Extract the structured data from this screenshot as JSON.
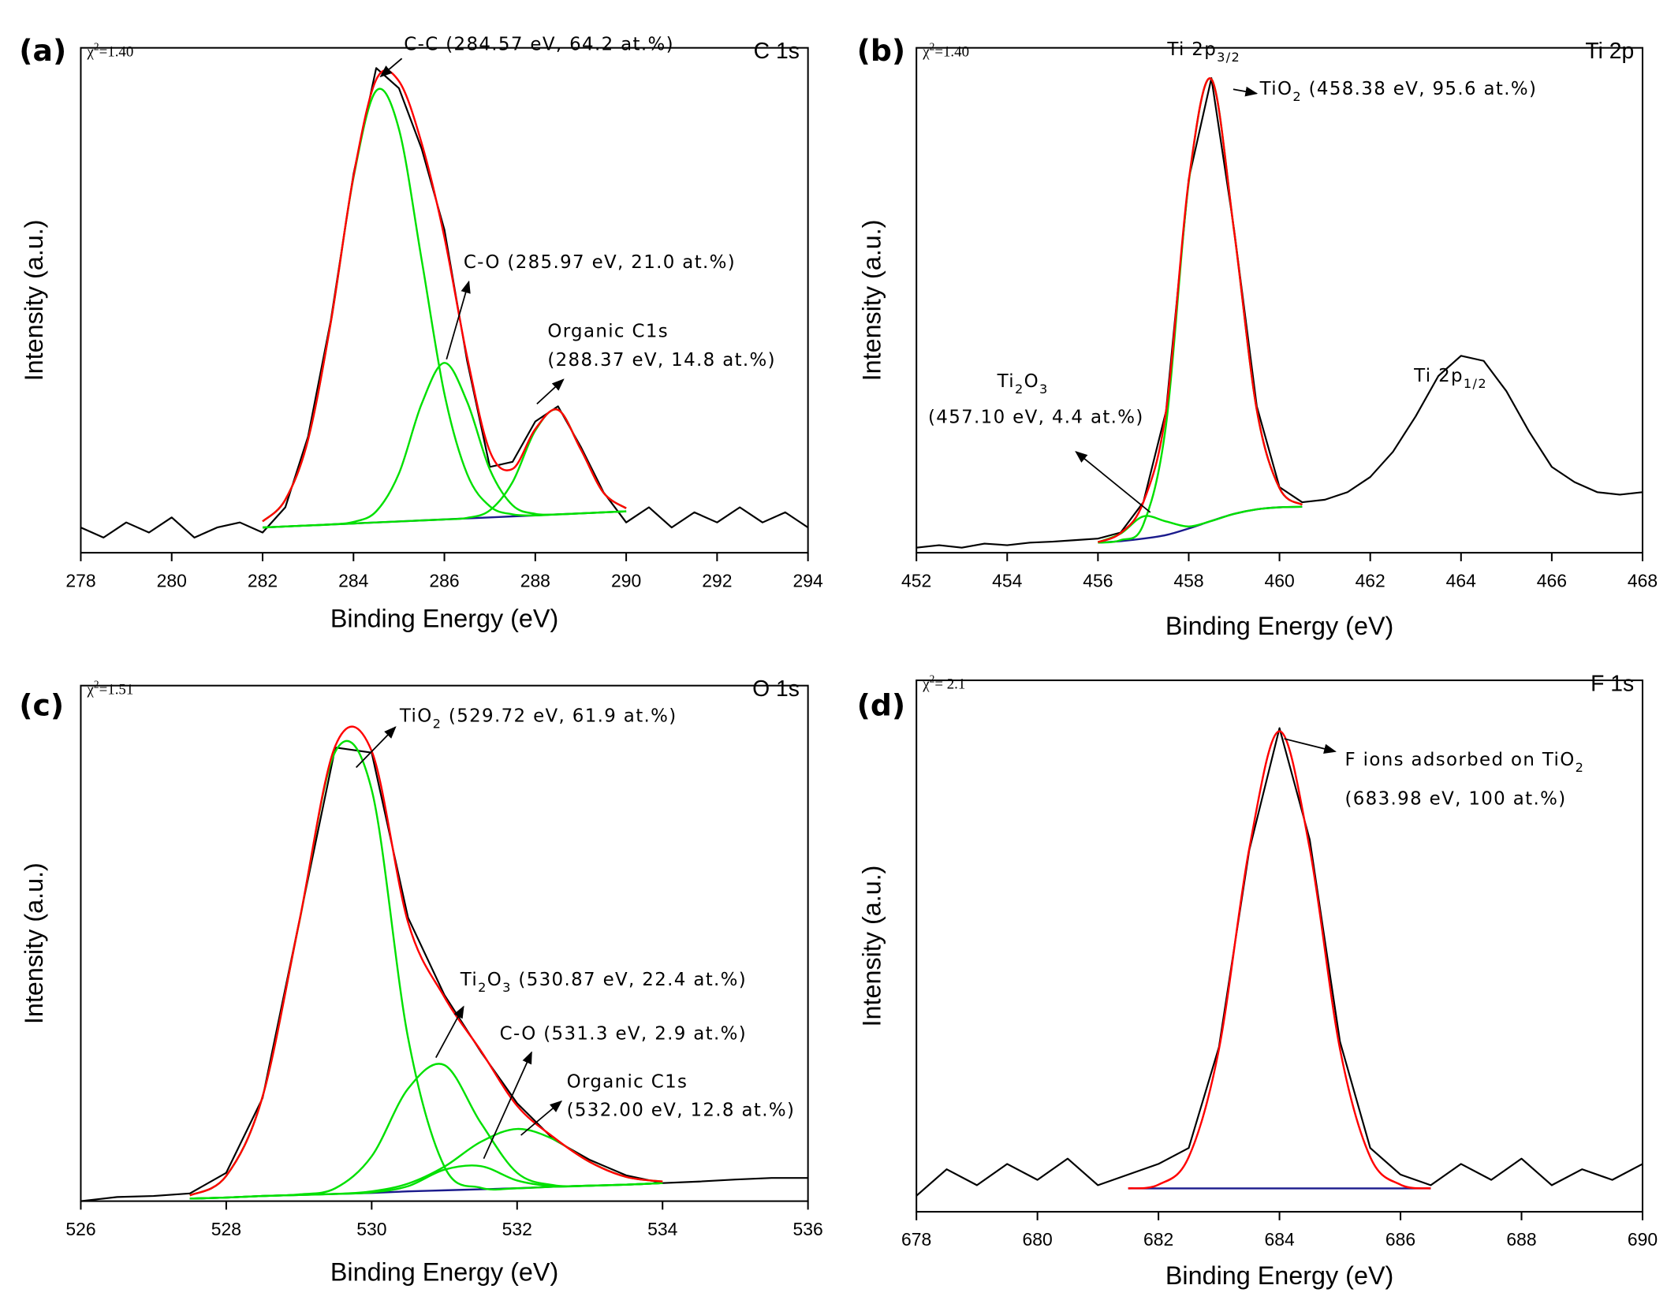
{
  "chart_data": [
    {
      "type": "line",
      "label": "(a)",
      "region": "C 1s",
      "chi": [
        "χ",
        "2",
        "=1.40"
      ],
      "xlabel": "Binding Energy (eV)",
      "ylabel": "Intensity (a.u.)",
      "xlim": [
        278,
        294
      ],
      "xticks": [
        278,
        280,
        282,
        284,
        286,
        288,
        290,
        292,
        294
      ],
      "ylim": [
        0,
        100
      ],
      "series": [
        {
          "color": "#000000",
          "x": [
            278,
            278.5,
            279,
            279.5,
            280,
            280.5,
            281,
            281.5,
            282,
            282.5,
            283,
            283.5,
            284,
            284.5,
            285,
            285.5,
            286,
            286.5,
            287,
            287.5,
            288,
            288.5,
            289,
            289.5,
            290,
            290.5,
            291,
            291.5,
            292,
            292.5,
            293,
            293.5,
            294
          ],
          "values": [
            5,
            3,
            6,
            4,
            7,
            3,
            5,
            6,
            4,
            9,
            23,
            46,
            75,
            96,
            92,
            80,
            64,
            38,
            17,
            18,
            26,
            29,
            21,
            12,
            6,
            9,
            5,
            8,
            6,
            9,
            6,
            8,
            5
          ]
        },
        {
          "color": "#1a1a8c",
          "x": [
            282,
            282.5,
            283,
            283.5,
            284,
            284.5,
            285,
            285.5,
            286,
            286.5,
            287,
            287.5,
            288,
            288.5,
            289,
            289.5,
            290
          ],
          "values": [
            5.0,
            5.2,
            5.4,
            5.6,
            5.8,
            6.0,
            6.2,
            6.4,
            6.6,
            6.8,
            7.0,
            7.2,
            7.4,
            7.6,
            7.8,
            8.0,
            8.2
          ]
        },
        {
          "color": "#00e000",
          "x": [
            282,
            282.5,
            283,
            283.5,
            284,
            284.5,
            285,
            285.5,
            286,
            286.5,
            287,
            287.5,
            288,
            288.5,
            289,
            289.5,
            290
          ],
          "values": [
            6.2,
            10.5,
            22.4,
            45.6,
            74.3,
            91.5,
            83.9,
            58.0,
            31.5,
            15.6,
            9.2,
            7.6,
            7.4,
            7.6,
            7.8,
            8.0,
            8.2
          ]
        },
        {
          "color": "#00e000",
          "x": [
            282,
            282.5,
            283,
            283.5,
            284,
            284.5,
            285,
            285.5,
            286,
            286.5,
            287,
            287.5,
            288,
            288.5,
            289,
            289.5,
            290
          ],
          "values": [
            5.0,
            5.2,
            5.4,
            5.6,
            6.1,
            8.2,
            15.7,
            29.5,
            37.6,
            29.9,
            16.5,
            9.4,
            7.7,
            7.6,
            7.8,
            8.0,
            8.2
          ]
        },
        {
          "color": "#00e000",
          "x": [
            282,
            282.5,
            283,
            283.5,
            284,
            284.5,
            285,
            285.5,
            286,
            286.5,
            287,
            287.5,
            288,
            288.5,
            289,
            289.5,
            290
          ],
          "values": [
            5.0,
            5.2,
            5.4,
            5.6,
            5.8,
            6.0,
            6.2,
            6.4,
            6.6,
            6.9,
            8.4,
            14.0,
            24.2,
            28.3,
            20.5,
            11.9,
            8.8
          ]
        },
        {
          "color": "#ff0000",
          "x": [
            282,
            282.5,
            283,
            283.5,
            284,
            284.5,
            285,
            285.5,
            286,
            286.5,
            287,
            287.5,
            288,
            288.5,
            289,
            289.5,
            290
          ],
          "values": [
            6.2,
            10.5,
            22.4,
            45.6,
            74.6,
            93.7,
            93.4,
            81.1,
            62.5,
            38.8,
            20.1,
            16.6,
            24.5,
            28.3,
            20.5,
            11.9,
            8.8
          ]
        }
      ],
      "annotations": [
        {
          "lines": [
            [
              "C-C (284.57 eV, 64.2 at.%)"
            ]
          ]
        },
        {
          "lines": [
            [
              "C-O (285.97 eV, 21.0 at.%)"
            ]
          ]
        },
        {
          "lines": [
            [
              "Organic C1s"
            ],
            [
              "(288.37 eV, 14.8 at.%)"
            ]
          ]
        }
      ]
    },
    {
      "type": "line",
      "label": "(b)",
      "region": "Ti 2p",
      "chi": [
        "χ",
        "2",
        "=1.40"
      ],
      "xlabel": "Binding Energy (eV)",
      "ylabel": "Intensity (a.u.)",
      "xlim": [
        452,
        468
      ],
      "xticks": [
        452,
        454,
        456,
        458,
        460,
        462,
        464,
        466,
        468
      ],
      "ylim": [
        0,
        100
      ],
      "series": [
        {
          "color": "#000000",
          "x": [
            452,
            452.5,
            453,
            453.5,
            454,
            454.5,
            455,
            455.5,
            456,
            456.5,
            457,
            457.5,
            458,
            458.5,
            459,
            459.5,
            460,
            460.5,
            461,
            461.5,
            462,
            462.5,
            463,
            463.5,
            464,
            464.5,
            465,
            465.5,
            466,
            466.5,
            467,
            467.5,
            468
          ],
          "values": [
            1,
            1.5,
            1,
            1.8,
            1.5,
            2,
            2.2,
            2.5,
            2.8,
            4,
            10,
            28,
            74,
            94,
            64,
            29,
            13,
            10,
            10.5,
            12,
            15,
            20,
            27,
            35,
            39,
            38,
            32,
            24,
            17,
            14,
            12,
            11.5,
            12
          ]
        },
        {
          "color": "#1a1a8c",
          "x": [
            456,
            456.5,
            457,
            457.5,
            458,
            458.5,
            459,
            459.5,
            460,
            460.5
          ],
          "values": [
            2.0,
            2.3,
            2.8,
            3.5,
            4.8,
            6.3,
            7.7,
            8.6,
            9.0,
            9.1
          ]
        },
        {
          "color": "#00e000",
          "x": [
            456,
            456.5,
            457,
            457.5,
            458,
            458.5,
            459,
            459.5,
            460,
            460.5
          ],
          "values": [
            2.0,
            2.5,
            5.6,
            25.3,
            73.3,
            93.8,
            63.7,
            28.3,
            12.8,
            9.5
          ]
        },
        {
          "color": "#00e000",
          "x": [
            456,
            456.5,
            457,
            457.5,
            458,
            458.5,
            459,
            459.5,
            460,
            460.5
          ],
          "values": [
            2.1,
            3.8,
            7.2,
            6.2,
            5.2,
            6.3,
            7.7,
            8.6,
            9.0,
            9.1
          ]
        },
        {
          "color": "#ff0000",
          "x": [
            456,
            456.5,
            457,
            457.5,
            458,
            458.5,
            459,
            459.5,
            460,
            460.5
          ],
          "values": [
            2.1,
            3.9,
            10.0,
            28.0,
            73.7,
            93.8,
            63.7,
            28.3,
            12.8,
            9.5
          ]
        }
      ],
      "annotations": [
        {
          "lines": [
            [
              "Ti 2p",
              "3/2"
            ]
          ]
        },
        {
          "lines": [
            [
              "TiO",
              "2",
              " (458.38 eV, 95.6 at.%)"
            ]
          ]
        },
        {
          "lines": [
            [
              "Ti",
              "2",
              "O",
              "3"
            ],
            [
              "(457.10 eV, 4.4 at.%)"
            ]
          ]
        },
        {
          "lines": [
            [
              "Ti 2p",
              "1/2"
            ]
          ]
        }
      ]
    },
    {
      "type": "line",
      "label": "(c)",
      "region": "O 1s",
      "chi": [
        "χ",
        "2",
        "=1.51"
      ],
      "xlabel": "Binding Energy (eV)",
      "ylabel": "Intensity (a.u.)",
      "xlim": [
        526,
        536
      ],
      "xticks": [
        526,
        528,
        530,
        532,
        534,
        536
      ],
      "ylim": [
        0,
        100
      ],
      "series": [
        {
          "color": "#000000",
          "x": [
            526,
            526.5,
            527,
            527.5,
            528,
            528.5,
            529,
            529.5,
            530,
            530.5,
            531,
            531.5,
            532,
            532.5,
            533,
            533.5,
            534,
            534.5,
            535,
            535.5,
            536
          ],
          "values": [
            0,
            0.8,
            1,
            1.5,
            5.5,
            20,
            54,
            88,
            87,
            55,
            40,
            29,
            19,
            12,
            8,
            5,
            3.5,
            3.8,
            4.2,
            4.5,
            4.5
          ]
        },
        {
          "color": "#1a1a8c",
          "x": [
            527.5,
            528,
            528.5,
            529,
            529.5,
            530,
            530.5,
            531,
            531.5,
            532,
            532.5,
            533,
            533.5,
            534
          ],
          "values": [
            0.5,
            0.7,
            1.0,
            1.2,
            1.4,
            1.6,
            1.9,
            2.1,
            2.3,
            2.5,
            2.8,
            3.0,
            3.2,
            3.5
          ]
        },
        {
          "color": "#00e000",
          "x": [
            527.5,
            528,
            528.5,
            529,
            529.5,
            530,
            530.5,
            531,
            531.5,
            532,
            532.5,
            533,
            533.5,
            534
          ],
          "values": [
            1.1,
            4.9,
            20.3,
            53.8,
            87.2,
            79.8,
            31.7,
            6.7,
            2.6,
            2.5,
            2.8,
            3.0,
            3.2,
            3.5
          ]
        },
        {
          "color": "#00e000",
          "x": [
            527.5,
            528,
            528.5,
            529,
            529.5,
            530,
            530.5,
            531,
            531.5,
            532,
            532.5,
            533,
            533.5,
            534
          ],
          "values": [
            0.5,
            0.7,
            1.0,
            1.3,
            2.5,
            8.7,
            21.8,
            26.4,
            15.2,
            5.5,
            3.1,
            3.0,
            3.2,
            3.5
          ]
        },
        {
          "color": "#00e000",
          "x": [
            527.5,
            528,
            528.5,
            529,
            529.5,
            530,
            530.5,
            531,
            531.5,
            532,
            532.5,
            533,
            533.5,
            534
          ],
          "values": [
            0.5,
            0.7,
            1.0,
            1.2,
            1.4,
            1.7,
            2.9,
            6.1,
            6.8,
            4.0,
            2.9,
            3.0,
            3.2,
            3.5
          ]
        },
        {
          "color": "#00e000",
          "x": [
            527.5,
            528,
            528.5,
            529,
            529.5,
            530,
            530.5,
            531,
            531.5,
            532,
            532.5,
            533,
            533.5,
            534
          ],
          "values": [
            0.5,
            0.7,
            1.0,
            1.2,
            1.4,
            1.9,
            3.4,
            6.7,
            11.5,
            14.0,
            12.0,
            7.6,
            4.7,
            3.8
          ]
        },
        {
          "color": "#ff0000",
          "x": [
            527.5,
            528,
            528.5,
            529,
            529.5,
            530,
            530.5,
            531,
            531.5,
            532,
            532.5,
            533,
            533.5,
            534
          ],
          "values": [
            1.1,
            4.9,
            20.3,
            53.9,
            88.3,
            87.3,
            54.1,
            39.6,
            29.2,
            18.5,
            12.4,
            7.6,
            4.7,
            3.8
          ]
        }
      ],
      "annotations": [
        {
          "lines": [
            [
              "TiO",
              "2",
              " (529.72 eV, 61.9 at.%)"
            ]
          ]
        },
        {
          "lines": [
            [
              "Ti",
              "2",
              "O",
              "3",
              " (530.87 eV, 22.4 at.%)"
            ]
          ]
        },
        {
          "lines": [
            [
              "C-O (531.3 eV, 2.9 at.%)"
            ]
          ]
        },
        {
          "lines": [
            [
              "Organic C1s"
            ],
            [
              "(532.00 eV, 12.8 at.%)"
            ]
          ]
        }
      ]
    },
    {
      "type": "line",
      "label": "(d)",
      "region": "F 1s",
      "chi": [
        "χ",
        "2",
        "= 2.1"
      ],
      "xlabel": "Binding Energy (eV)",
      "ylabel": "Intensity (a.u.)",
      "xlim": [
        678,
        690
      ],
      "xticks": [
        678,
        680,
        682,
        684,
        686,
        688,
        690
      ],
      "ylim": [
        0,
        100
      ],
      "series": [
        {
          "color": "#000000",
          "x": [
            678,
            678.5,
            679,
            679.5,
            680,
            680.5,
            681,
            681.5,
            682,
            682.5,
            683,
            683.5,
            684,
            684.5,
            685,
            685.5,
            686,
            686.5,
            687,
            687.5,
            688,
            688.5,
            689,
            689.5,
            690
          ],
          "values": [
            3,
            8,
            5,
            9,
            6,
            10,
            5,
            7,
            9,
            12,
            31,
            68,
            91,
            70,
            32,
            12,
            7,
            5,
            9,
            6,
            10,
            5,
            8,
            6,
            9
          ]
        },
        {
          "color": "#1a1a8c",
          "x": [
            681.5,
            686.5
          ],
          "values": [
            4.4,
            4.4
          ]
        },
        {
          "color": "#ff0000",
          "x": [
            681.5,
            682,
            682.5,
            683,
            683.5,
            684,
            684.5,
            685,
            685.5,
            686,
            686.5
          ],
          "values": [
            4.4,
            5.1,
            10.3,
            30.6,
            68.3,
            90.4,
            68.3,
            30.6,
            10.3,
            5.1,
            4.4
          ]
        }
      ],
      "annotations": [
        {
          "lines": [
            [
              "F ions adsorbed on TiO",
              "2"
            ],
            [
              "(683.98 eV, 100 at.%)"
            ]
          ]
        }
      ]
    }
  ]
}
